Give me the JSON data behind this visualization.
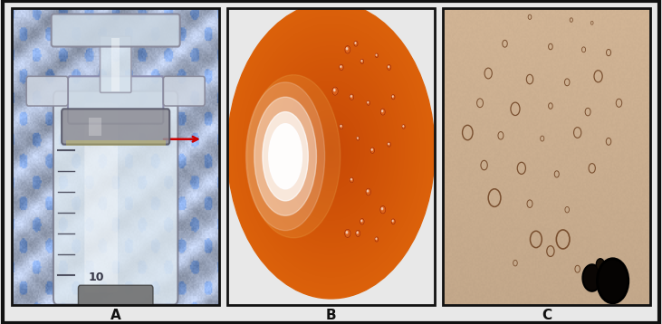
{
  "figure_bg": "#e8e8e8",
  "outer_border_color": "#111111",
  "outer_border_lw": 3,
  "panel_border_color": "#111111",
  "panel_border_lw": 2,
  "panel_labels": [
    "A",
    "B",
    "C"
  ],
  "label_color": "#111111",
  "label_fontsize": 11,
  "label_fontweight": "bold",
  "panel_A": {
    "bg_outer": "#c8d8e8",
    "syringe_bg": "#e0ecf4",
    "arrow_color": "#cc0000",
    "label_color": "#111111"
  },
  "panel_B": {
    "bg_color": "#000000",
    "fundus_color": "#cc4400",
    "glow_color": "#ffffff",
    "label_color": "#111111"
  },
  "panel_C": {
    "bg_color": "#d4b896",
    "droplet_edge": "#8b6040",
    "big_circle1_color": "#0a0804",
    "big_circle2_color": "#181008",
    "label_color": "#111111"
  }
}
